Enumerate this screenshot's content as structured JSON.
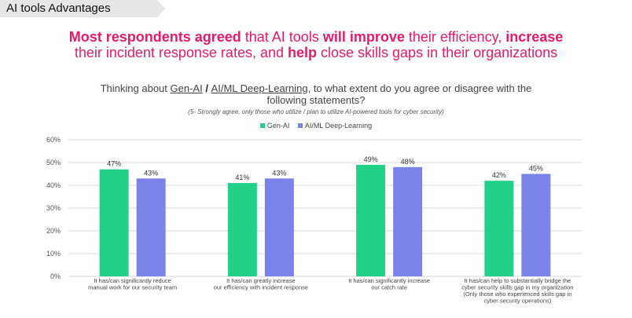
{
  "tab_title": "AI tools Advantages",
  "headline": {
    "line1": [
      {
        "text": "Most respondents agreed",
        "bold": true
      },
      {
        "text": " that AI tools ",
        "bold": false
      },
      {
        "text": "will improve",
        "bold": true
      },
      {
        "text": " their efficiency, ",
        "bold": false
      },
      {
        "text": "increase",
        "bold": true
      }
    ],
    "line2": [
      {
        "text": "their incident response rates, and ",
        "bold": false
      },
      {
        "text": "help",
        "bold": true
      },
      {
        "text": " close skills gaps in their organizations",
        "bold": false
      }
    ]
  },
  "question": {
    "prefix": "Thinking about ",
    "term1": "Gen-AI",
    "sep": " / ",
    "term2": "AI/ML Deep-Learning",
    "suffix": ", to what extent do you agree or disagree with the",
    "line2": "following statements?",
    "note": "(5- Strongly agree, only those who utilize / plan to utilize AI-powered tools for cyber security)"
  },
  "colors": {
    "accent": "#e8196b",
    "series1": "#22d088",
    "series2": "#7b82e8",
    "grid": "#d9d9d9"
  },
  "chart_data": {
    "type": "bar",
    "categories": [
      [
        "It has/can significantly reduce",
        "manual work for our security team"
      ],
      [
        "It has/can greatly increase",
        "our efficiency with incident response"
      ],
      [
        "It has/can significantly increase",
        "our catch rate"
      ],
      [
        "It has/can help to substantially bridge the",
        "cyber security skills gap in my organization",
        "(Only those who experienced skills gap in",
        "cyber security operations)"
      ]
    ],
    "series": [
      {
        "name": "Gen-AI",
        "values": [
          47,
          41,
          49,
          42
        ],
        "labels": [
          "47%",
          "41%",
          "49%",
          "42%"
        ]
      },
      {
        "name": "AI/ML Deep-Learning",
        "values": [
          43,
          43,
          48,
          45
        ],
        "labels": [
          "43%",
          "43%",
          "48%",
          "45%"
        ]
      }
    ],
    "ylim": [
      0,
      60
    ],
    "yticks": [
      0,
      10,
      20,
      30,
      40,
      50,
      60
    ],
    "ytick_labels": [
      "0%",
      "10%",
      "20%",
      "30%",
      "40%",
      "50%",
      "60%"
    ],
    "grid": true,
    "legend_position": "top-center"
  }
}
